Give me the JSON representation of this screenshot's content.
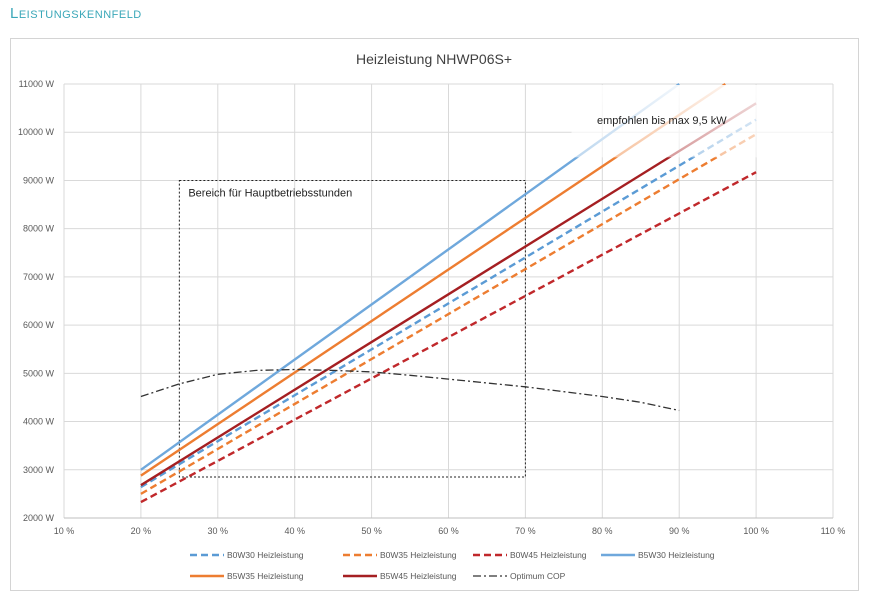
{
  "page": {
    "section_title": "Leistungskennfeld"
  },
  "chart_data": {
    "type": "line",
    "title": "Heizleistung NHWP06S+",
    "xlabel": "",
    "ylabel": "",
    "xlim": [
      10,
      110
    ],
    "ylim": [
      2000,
      11000
    ],
    "x_ticks": [
      "10 %",
      "20 %",
      "30 %",
      "40 %",
      "50 %",
      "60 %",
      "70 %",
      "80 %",
      "90 %",
      "100 %",
      "110 %"
    ],
    "y_ticks": [
      "2000 W",
      "3000 W",
      "4000 W",
      "5000 W",
      "6000 W",
      "7000 W",
      "8000 W",
      "9000 W",
      "10000 W",
      "11000 W"
    ],
    "grid": true,
    "legend_position": "bottom",
    "series": [
      {
        "name": "B0W30 Heizleistung",
        "color": "#5b9bd5",
        "dash": "dashed",
        "x": [
          20,
          100
        ],
        "y": [
          2640,
          10260
        ]
      },
      {
        "name": "B0W35 Heizleistung",
        "color": "#ed7d31",
        "dash": "dashed",
        "x": [
          20,
          100
        ],
        "y": [
          2500,
          9960
        ]
      },
      {
        "name": "B0W45 Heizleistung",
        "color": "#c0282b",
        "dash": "dashed",
        "x": [
          20,
          100
        ],
        "y": [
          2330,
          9170
        ]
      },
      {
        "name": "B5W30 Heizleistung",
        "color": "#6fa8dc",
        "dash": "solid",
        "x": [
          20,
          90
        ],
        "y": [
          3000,
          11000
        ]
      },
      {
        "name": "B5W35 Heizleistung",
        "color": "#ed7d31",
        "dash": "solid",
        "x": [
          20,
          96
        ],
        "y": [
          2880,
          11000
        ]
      },
      {
        "name": "B5W45 Heizleistung",
        "color": "#a51f22",
        "dash": "solid",
        "x": [
          20,
          100
        ],
        "y": [
          2680,
          10600
        ]
      },
      {
        "name": "Optimum COP",
        "color": "#333333",
        "dash": "dashdot",
        "x": [
          20,
          25,
          30,
          35,
          40,
          45,
          50,
          55,
          60,
          65,
          70,
          75,
          80,
          85,
          90
        ],
        "y": [
          4520,
          4780,
          4980,
          5060,
          5080,
          5060,
          5030,
          4960,
          4880,
          4800,
          4720,
          4620,
          4520,
          4400,
          4230
        ]
      }
    ],
    "annotations": [
      {
        "text": "Bereich für Hauptbetriebsstunden",
        "box_x": [
          25,
          70
        ],
        "box_y": [
          2850,
          9000
        ]
      },
      {
        "text": "empfohlen bis max 9,5 kW",
        "cutoff_w": 9500
      }
    ]
  }
}
